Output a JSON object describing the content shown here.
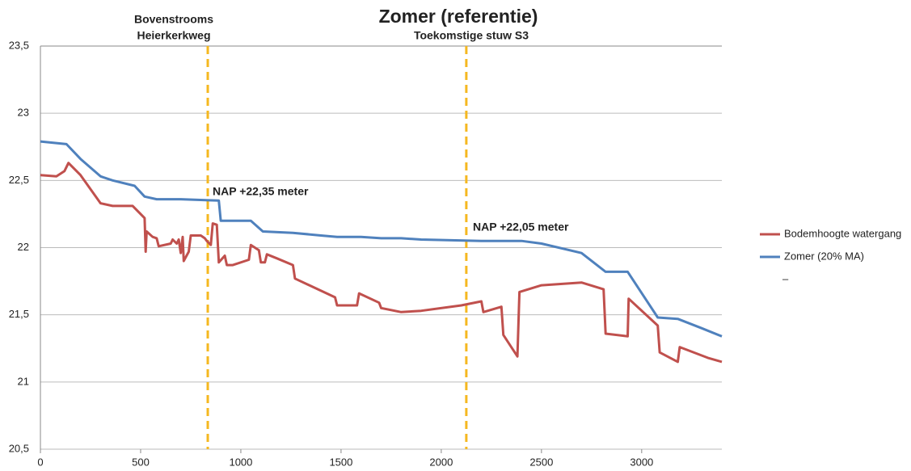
{
  "chart_data": {
    "type": "line",
    "title": "Zomer (referentie)",
    "annotations": [
      "Bovenstrooms",
      "Heierkerkweg",
      "Toekomstige stuw S3",
      "NAP +22,35 meter",
      "NAP +22,05 meter"
    ],
    "reference_lines": [
      835,
      2125
    ],
    "reference_color": "#f5b820",
    "xlim": [
      0,
      3400
    ],
    "xticks": [
      0,
      500,
      1000,
      1500,
      2000,
      2500,
      3000
    ],
    "ylim": [
      20.5,
      23.5
    ],
    "yticks": [
      {
        "value": 20.5,
        "label": "20,5"
      },
      21,
      {
        "value": 21.5,
        "label": "21,5"
      },
      22,
      {
        "value": 22.5,
        "label": "22,5"
      },
      23,
      {
        "value": 23.5,
        "label": "23,5"
      }
    ],
    "grid": true,
    "legend": "right",
    "series": [
      {
        "name": "Bodemhoogte watergang",
        "color": "#c0504d",
        "x": [
          0,
          80,
          120,
          140,
          200,
          300,
          360,
          460,
          520,
          525,
          530,
          560,
          580,
          590,
          650,
          660,
          680,
          690,
          700,
          710,
          715,
          740,
          750,
          800,
          820,
          830,
          850,
          860,
          880,
          890,
          920,
          930,
          960,
          1040,
          1050,
          1090,
          1100,
          1120,
          1130,
          1180,
          1260,
          1270,
          1470,
          1480,
          1580,
          1590,
          1690,
          1700,
          1800,
          1900,
          2100,
          2200,
          2210,
          2300,
          2310,
          2380,
          2390,
          2500,
          2700,
          2810,
          2820,
          2930,
          2935,
          3080,
          3090,
          3180,
          3190,
          3330,
          3400
        ],
        "values": [
          22.54,
          22.53,
          22.57,
          22.63,
          22.54,
          22.33,
          22.31,
          22.31,
          22.22,
          21.97,
          22.12,
          22.08,
          22.07,
          22.01,
          22.03,
          22.06,
          22.03,
          22.06,
          21.96,
          22.08,
          21.9,
          21.97,
          22.09,
          22.09,
          22.07,
          22.05,
          22.02,
          22.18,
          22.17,
          21.89,
          21.94,
          21.87,
          21.87,
          21.91,
          22.02,
          21.98,
          21.89,
          21.89,
          21.95,
          21.92,
          21.87,
          21.77,
          21.63,
          21.57,
          21.57,
          21.66,
          21.59,
          21.55,
          21.52,
          21.53,
          21.57,
          21.6,
          21.52,
          21.56,
          21.35,
          21.19,
          21.67,
          21.72,
          21.74,
          21.69,
          21.36,
          21.34,
          21.62,
          21.42,
          21.22,
          21.15,
          21.26,
          21.18,
          21.15
        ]
      },
      {
        "name": "Zomer (20% MA)",
        "color": "#4f81bd",
        "x": [
          0,
          130,
          200,
          300,
          360,
          470,
          520,
          580,
          700,
          890,
          900,
          1050,
          1110,
          1260,
          1400,
          1480,
          1600,
          1700,
          1800,
          1900,
          2200,
          2400,
          2500,
          2700,
          2820,
          2930,
          3080,
          3180,
          3300,
          3400
        ],
        "values": [
          22.79,
          22.77,
          22.66,
          22.53,
          22.5,
          22.46,
          22.38,
          22.36,
          22.36,
          22.35,
          22.2,
          22.2,
          22.12,
          22.11,
          22.09,
          22.08,
          22.08,
          22.07,
          22.07,
          22.06,
          22.05,
          22.05,
          22.03,
          21.96,
          21.82,
          21.82,
          21.48,
          21.47,
          21.4,
          21.34
        ]
      }
    ],
    "legend_extra": "–"
  }
}
